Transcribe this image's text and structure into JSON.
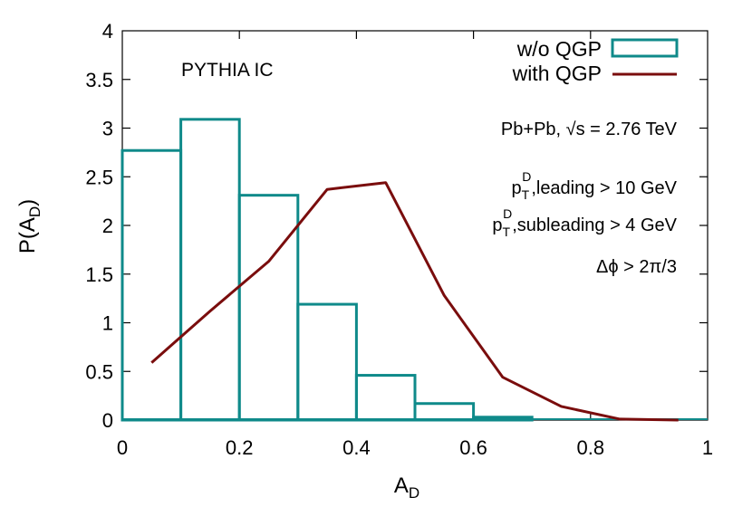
{
  "chart_data": {
    "type": "bar",
    "xlabel": "A",
    "xlabel_sub": "D",
    "ylabel": "P(A",
    "ylabel_sub": "D",
    "ylabel_close": ")",
    "xlim": [
      0,
      1
    ],
    "ylim": [
      0,
      4
    ],
    "x_ticks": [
      "0",
      "0.2",
      "0.4",
      "0.6",
      "0.8",
      "1"
    ],
    "y_ticks": [
      "0",
      "0.5",
      "1",
      "1.5",
      "2",
      "2.5",
      "3",
      "3.5",
      "4"
    ],
    "legend_position": "top-right",
    "series": [
      {
        "name": "w/o QGP",
        "kind": "histogram",
        "color": "#0f8a8a",
        "bin_edges": [
          0,
          0.1,
          0.2,
          0.3,
          0.4,
          0.5,
          0.6,
          0.7,
          0.8,
          0.9,
          1.0
        ],
        "values": [
          2.77,
          3.09,
          2.31,
          1.19,
          0.46,
          0.17,
          0.03,
          0.0,
          0.0,
          0.0
        ]
      },
      {
        "name": "with QGP",
        "kind": "line",
        "color": "#7a0d0d",
        "x": [
          0.05,
          0.15,
          0.25,
          0.35,
          0.45,
          0.55,
          0.65,
          0.75,
          0.85,
          0.95
        ],
        "y": [
          0.59,
          1.12,
          1.63,
          2.37,
          2.44,
          1.28,
          0.44,
          0.14,
          0.01,
          0.0
        ]
      }
    ],
    "annotations": {
      "model": "PYTHIA IC",
      "system": "Pb+Pb, √s = 2.76 TeV",
      "cut1_main": "p",
      "cut1_sup": "D",
      "cut1_sub": "T",
      "cut1_rest": ",leading > 10 GeV",
      "cut2_main": "p",
      "cut2_sup": "D",
      "cut2_sub": "T",
      "cut2_rest": ",subleading > 4 GeV",
      "dphi": "Δϕ > 2π/3"
    }
  }
}
